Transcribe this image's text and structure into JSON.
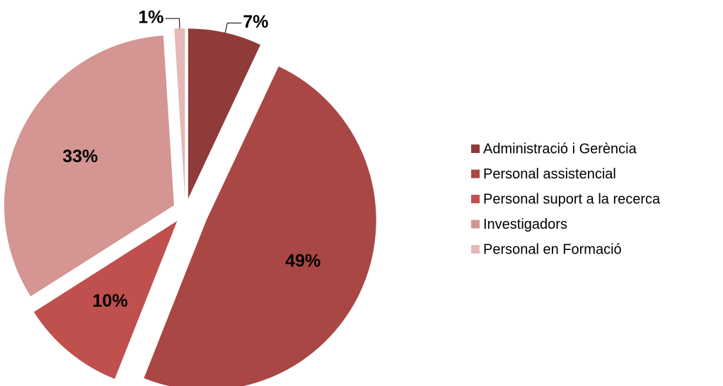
{
  "chart_data": {
    "type": "pie",
    "categories": [
      "Administració i Gerència",
      "Personal assistencial",
      "Personal suport a la recerca",
      "Investigadors",
      "Personal en Formació"
    ],
    "values": [
      7,
      49,
      10,
      33,
      1
    ],
    "value_labels": [
      "7%",
      "49%",
      "10%",
      "33%",
      "1%"
    ],
    "colors": [
      "#8e3b3a",
      "#a94745",
      "#c0504d",
      "#d49593",
      "#e5b9b8"
    ],
    "legend": "right"
  }
}
